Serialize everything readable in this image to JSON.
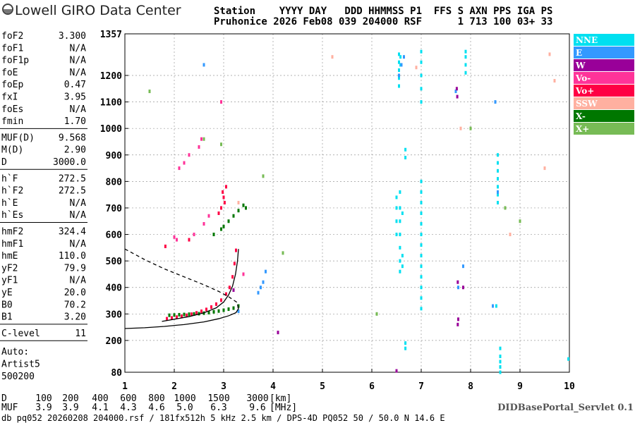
{
  "header": {
    "logo": "Lowell GIRO Data Center",
    "columns": "Station    YYYY DAY   DDD HHMMSS P1  FFS S AXN PPS IGA PS",
    "values": "Pruhonice 2026 Feb08 039 204000 RSF      1 713 100 03+ 33"
  },
  "parameters": [
    [
      {
        "name": "foF2",
        "value": "3.300"
      },
      {
        "name": "foF1",
        "value": "N/A"
      },
      {
        "name": "foF1p",
        "value": "N/A"
      },
      {
        "name": "foE",
        "value": "N/A"
      },
      {
        "name": "foEp",
        "value": "0.47"
      },
      {
        "name": "fxI",
        "value": "3.95"
      },
      {
        "name": "foEs",
        "value": "N/A"
      },
      {
        "name": "fmin",
        "value": "1.70"
      }
    ],
    [
      {
        "name": "MUF(D)",
        "value": "9.568"
      },
      {
        "name": "M(D)",
        "value": "2.90"
      },
      {
        "name": "D",
        "value": "3000.0"
      }
    ],
    [
      {
        "name": "h`F",
        "value": "272.5"
      },
      {
        "name": "h`F2",
        "value": "272.5"
      },
      {
        "name": "h`E",
        "value": "N/A"
      },
      {
        "name": "h`Es",
        "value": "N/A"
      }
    ],
    [
      {
        "name": "hmF2",
        "value": "324.4"
      },
      {
        "name": "hmF1",
        "value": "N/A"
      },
      {
        "name": "hmE",
        "value": "110.0"
      },
      {
        "name": "yF2",
        "value": "79.9"
      },
      {
        "name": "yF1",
        "value": "N/A"
      },
      {
        "name": "yE",
        "value": "20.0"
      },
      {
        "name": "B0",
        "value": "70.2"
      },
      {
        "name": "B1",
        "value": "3.20"
      }
    ],
    [
      {
        "name": "C-level",
        "value": "11"
      }
    ]
  ],
  "auto": [
    "Auto:",
    "Artist5",
    "500200"
  ],
  "muf_table": {
    "d_label": "D",
    "d_values": [
      "100",
      "200",
      "400",
      "600",
      "800",
      "1000",
      "1500",
      "3000"
    ],
    "d_unit": "[km]",
    "muf_label": "MUF",
    "muf_values": [
      "3.9",
      "3.9",
      "4.1",
      "4.3",
      "4.6",
      "5.0",
      "6.3",
      "9.6"
    ],
    "muf_unit": "[MHz]"
  },
  "footer": {
    "servlet": "DIDBasePortal_Servlet 0.1",
    "info": "db pq052 20260208 204000.rsf / 181fx512h 5 kHz 2.5 km / DPS-4D PQ052 50 / 50.0 N 14.6 E"
  },
  "chart_data": {
    "type": "scatter",
    "xlim": [
      1,
      10
    ],
    "xticks": [
      1,
      2,
      3,
      4,
      5,
      6,
      7,
      8,
      9,
      10
    ],
    "ylim": [
      80,
      1357
    ],
    "yticks": [
      80,
      200,
      300,
      400,
      500,
      600,
      700,
      800,
      900,
      1000,
      1100,
      1200,
      1357
    ],
    "grid": true,
    "series": [
      {
        "name": "NNE",
        "color": "#00e0f0",
        "x": [
          6.55,
          6.55,
          6.55,
          6.55,
          6.55,
          6.58,
          6.58,
          6.5,
          6.5,
          6.5,
          6.5,
          6.57,
          6.57,
          6.57,
          6.57,
          6.57,
          6.57,
          6.57,
          6.62,
          6.62,
          6.62,
          7.0,
          7.0,
          7.0,
          7.0,
          7.0,
          7.0,
          7.0,
          7.0,
          7.0,
          7.0,
          7.0,
          7.0,
          7.0,
          7.0,
          7.0,
          7.0,
          7.0,
          7.0,
          6.68,
          6.68,
          6.68,
          6.68,
          7.9,
          7.9,
          7.9,
          7.9,
          8.55,
          8.55,
          8.55,
          8.55,
          8.55,
          8.55,
          8.55,
          8.6,
          8.6,
          8.6,
          8.6,
          8.6,
          8.52,
          9.98
        ],
        "values": [
          1160,
          1190,
          1220,
          1250,
          1280,
          1240,
          1270,
          600,
          650,
          700,
          740,
          460,
          500,
          550,
          600,
          650,
          700,
          760,
          480,
          520,
          680,
          320,
          360,
          400,
          440,
          480,
          520,
          560,
          600,
          640,
          680,
          720,
          760,
          800,
          1100,
          1150,
          1200,
          1250,
          1290,
          890,
          920,
          170,
          190,
          1210,
          1240,
          1270,
          1290,
          720,
          750,
          780,
          810,
          840,
          870,
          900,
          80,
          100,
          120,
          140,
          170,
          330,
          130
        ]
      },
      {
        "name": "E",
        "color": "#3399ff",
        "x": [
          3.7,
          3.75,
          3.8,
          3.85,
          6.55,
          6.6,
          6.65,
          8.45,
          8.5,
          8.55,
          7.7,
          7.75,
          7.85,
          2.6,
          3.3
        ],
        "values": [
          380,
          400,
          420,
          460,
          1200,
          1240,
          1270,
          330,
          1100,
          760,
          1140,
          400,
          480,
          1240,
          310
        ]
      },
      {
        "name": "W",
        "color": "#990099",
        "x": [
          7.72,
          7.73,
          7.74,
          7.75,
          7.74,
          4.1,
          3.2,
          7.85,
          6.5
        ],
        "values": [
          1150,
          1120,
          260,
          280,
          420,
          230,
          390,
          400,
          85
        ]
      },
      {
        "name": "Vo-",
        "color": "#ff3399",
        "x": [
          2.1,
          2.2,
          2.3,
          2.6,
          2.7,
          2.55,
          2.5,
          2.0,
          2.05,
          2.95,
          3.4,
          2.4
        ],
        "values": [
          850,
          870,
          900,
          640,
          670,
          960,
          930,
          590,
          580,
          1100,
          450,
          600
        ]
      },
      {
        "name": "Vo+",
        "color": "#ff0044",
        "x": [
          1.85,
          1.95,
          2.05,
          2.15,
          2.25,
          2.35,
          2.45,
          2.55,
          2.65,
          2.75,
          2.85,
          2.95,
          3.05,
          3.12,
          3.18,
          3.22,
          3.25,
          2.95,
          3.0,
          3.05,
          2.98,
          3.02,
          2.9,
          1.82,
          2.3
        ],
        "values": [
          282,
          285,
          288,
          291,
          295,
          299,
          304,
          310,
          317,
          326,
          337,
          352,
          375,
          400,
          440,
          490,
          540,
          700,
          740,
          780,
          760,
          720,
          680,
          555,
          580
        ]
      },
      {
        "name": "SSW",
        "color": "#ffb0a0",
        "x": [
          5.2,
          9.5,
          9.6,
          9.7,
          7.8,
          8.8,
          3.3,
          6.9
        ],
        "values": [
          1270,
          850,
          1280,
          1180,
          1000,
          600,
          720,
          1230
        ]
      },
      {
        "name": "X-",
        "color": "#007700",
        "x": [
          1.9,
          2.0,
          2.1,
          2.2,
          2.3,
          2.4,
          2.5,
          2.6,
          2.7,
          2.8,
          2.9,
          3.0,
          3.1,
          3.2,
          3.3,
          3.0,
          3.1,
          3.2,
          3.3,
          3.4,
          2.8,
          2.95,
          3.45
        ],
        "values": [
          295,
          296,
          297,
          298,
          299,
          300,
          301,
          303,
          305,
          308,
          311,
          314,
          318,
          322,
          330,
          630,
          650,
          670,
          690,
          710,
          600,
          620,
          700
        ]
      },
      {
        "name": "X+",
        "color": "#77bb55",
        "x": [
          2.6,
          2.95,
          3.8,
          4.2,
          6.1,
          8.0,
          8.7,
          9.0,
          1.5
        ],
        "values": [
          960,
          940,
          820,
          530,
          300,
          1000,
          700,
          650,
          1140
        ]
      }
    ],
    "lines": [
      {
        "style": "solid",
        "color": "#000000",
        "x": [
          1.75,
          2.0,
          2.3,
          2.6,
          2.85,
          3.0,
          3.1,
          3.18,
          3.24,
          3.28,
          3.3
        ],
        "y": [
          272,
          280,
          290,
          304,
          323,
          345,
          372,
          405,
          450,
          500,
          545
        ]
      },
      {
        "style": "solid",
        "color": "#000000",
        "x": [
          1.0,
          1.4,
          1.8,
          2.2,
          2.6,
          2.9,
          3.1,
          3.25,
          3.3,
          3.28
        ],
        "y": [
          245,
          248,
          253,
          260,
          270,
          282,
          293,
          305,
          320,
          335
        ]
      },
      {
        "style": "dashed",
        "color": "#000000",
        "x": [
          1.0,
          1.4,
          1.8,
          2.2,
          2.6,
          2.9,
          3.1,
          3.3
        ],
        "y": [
          545,
          505,
          470,
          440,
          410,
          385,
          365,
          340
        ]
      }
    ]
  }
}
